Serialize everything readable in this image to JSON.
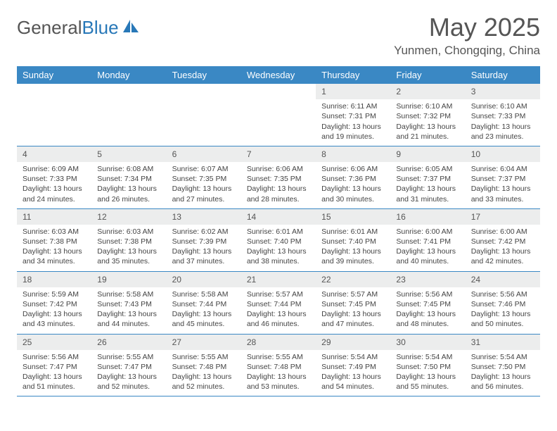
{
  "logo": {
    "text_a": "General",
    "text_b": "Blue"
  },
  "header": {
    "month_title": "May 2025",
    "location": "Yunmen, Chongqing, China"
  },
  "colors": {
    "header_bg": "#3a88c4",
    "header_text": "#ffffff",
    "daynum_bg": "#eceded",
    "border": "#3a88c4"
  },
  "weekdays": [
    "Sunday",
    "Monday",
    "Tuesday",
    "Wednesday",
    "Thursday",
    "Friday",
    "Saturday"
  ],
  "weeks": [
    [
      null,
      null,
      null,
      null,
      {
        "n": "1",
        "sunrise": "6:11 AM",
        "sunset": "7:31 PM",
        "day_h": "13",
        "day_m": "19"
      },
      {
        "n": "2",
        "sunrise": "6:10 AM",
        "sunset": "7:32 PM",
        "day_h": "13",
        "day_m": "21"
      },
      {
        "n": "3",
        "sunrise": "6:10 AM",
        "sunset": "7:33 PM",
        "day_h": "13",
        "day_m": "23"
      }
    ],
    [
      {
        "n": "4",
        "sunrise": "6:09 AM",
        "sunset": "7:33 PM",
        "day_h": "13",
        "day_m": "24"
      },
      {
        "n": "5",
        "sunrise": "6:08 AM",
        "sunset": "7:34 PM",
        "day_h": "13",
        "day_m": "26"
      },
      {
        "n": "6",
        "sunrise": "6:07 AM",
        "sunset": "7:35 PM",
        "day_h": "13",
        "day_m": "27"
      },
      {
        "n": "7",
        "sunrise": "6:06 AM",
        "sunset": "7:35 PM",
        "day_h": "13",
        "day_m": "28"
      },
      {
        "n": "8",
        "sunrise": "6:06 AM",
        "sunset": "7:36 PM",
        "day_h": "13",
        "day_m": "30"
      },
      {
        "n": "9",
        "sunrise": "6:05 AM",
        "sunset": "7:37 PM",
        "day_h": "13",
        "day_m": "31"
      },
      {
        "n": "10",
        "sunrise": "6:04 AM",
        "sunset": "7:37 PM",
        "day_h": "13",
        "day_m": "33"
      }
    ],
    [
      {
        "n": "11",
        "sunrise": "6:03 AM",
        "sunset": "7:38 PM",
        "day_h": "13",
        "day_m": "34"
      },
      {
        "n": "12",
        "sunrise": "6:03 AM",
        "sunset": "7:38 PM",
        "day_h": "13",
        "day_m": "35"
      },
      {
        "n": "13",
        "sunrise": "6:02 AM",
        "sunset": "7:39 PM",
        "day_h": "13",
        "day_m": "37"
      },
      {
        "n": "14",
        "sunrise": "6:01 AM",
        "sunset": "7:40 PM",
        "day_h": "13",
        "day_m": "38"
      },
      {
        "n": "15",
        "sunrise": "6:01 AM",
        "sunset": "7:40 PM",
        "day_h": "13",
        "day_m": "39"
      },
      {
        "n": "16",
        "sunrise": "6:00 AM",
        "sunset": "7:41 PM",
        "day_h": "13",
        "day_m": "40"
      },
      {
        "n": "17",
        "sunrise": "6:00 AM",
        "sunset": "7:42 PM",
        "day_h": "13",
        "day_m": "42"
      }
    ],
    [
      {
        "n": "18",
        "sunrise": "5:59 AM",
        "sunset": "7:42 PM",
        "day_h": "13",
        "day_m": "43"
      },
      {
        "n": "19",
        "sunrise": "5:58 AM",
        "sunset": "7:43 PM",
        "day_h": "13",
        "day_m": "44"
      },
      {
        "n": "20",
        "sunrise": "5:58 AM",
        "sunset": "7:44 PM",
        "day_h": "13",
        "day_m": "45"
      },
      {
        "n": "21",
        "sunrise": "5:57 AM",
        "sunset": "7:44 PM",
        "day_h": "13",
        "day_m": "46"
      },
      {
        "n": "22",
        "sunrise": "5:57 AM",
        "sunset": "7:45 PM",
        "day_h": "13",
        "day_m": "47"
      },
      {
        "n": "23",
        "sunrise": "5:56 AM",
        "sunset": "7:45 PM",
        "day_h": "13",
        "day_m": "48"
      },
      {
        "n": "24",
        "sunrise": "5:56 AM",
        "sunset": "7:46 PM",
        "day_h": "13",
        "day_m": "50"
      }
    ],
    [
      {
        "n": "25",
        "sunrise": "5:56 AM",
        "sunset": "7:47 PM",
        "day_h": "13",
        "day_m": "51"
      },
      {
        "n": "26",
        "sunrise": "5:55 AM",
        "sunset": "7:47 PM",
        "day_h": "13",
        "day_m": "52"
      },
      {
        "n": "27",
        "sunrise": "5:55 AM",
        "sunset": "7:48 PM",
        "day_h": "13",
        "day_m": "52"
      },
      {
        "n": "28",
        "sunrise": "5:55 AM",
        "sunset": "7:48 PM",
        "day_h": "13",
        "day_m": "53"
      },
      {
        "n": "29",
        "sunrise": "5:54 AM",
        "sunset": "7:49 PM",
        "day_h": "13",
        "day_m": "54"
      },
      {
        "n": "30",
        "sunrise": "5:54 AM",
        "sunset": "7:50 PM",
        "day_h": "13",
        "day_m": "55"
      },
      {
        "n": "31",
        "sunrise": "5:54 AM",
        "sunset": "7:50 PM",
        "day_h": "13",
        "day_m": "56"
      }
    ]
  ],
  "labels": {
    "sunrise": "Sunrise:",
    "sunset": "Sunset:",
    "daylight_prefix": "Daylight:",
    "hours_word": "hours",
    "and_word": "and",
    "minutes_word": "minutes."
  }
}
